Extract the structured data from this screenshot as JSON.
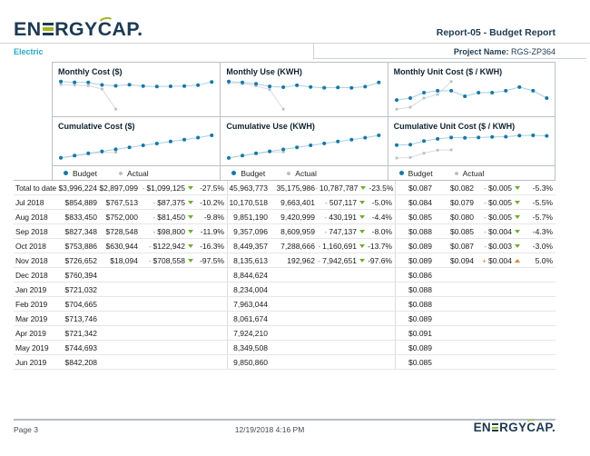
{
  "header": {
    "logo": {
      "part1": "EN",
      "part2": "RGY",
      "part3": "C",
      "part4": "AP."
    },
    "report_title": "Report-05 - Budget Report",
    "commodity": "Electric",
    "project_label": "Project Name:",
    "project_name": "RGS-ZP364"
  },
  "legend": {
    "budget": "Budget",
    "actual": "Actual"
  },
  "colors": {
    "navy": "#1d3a52",
    "logo_green": "#a4b41e",
    "commodity_teal": "#2aa8cb",
    "budget_dot": "#1878a5",
    "budget_line": "#a6d0e2",
    "actual_dot": "#b9c0c4",
    "actual_line": "#d9dde0",
    "variance_down_green": "#70ad2e",
    "variance_up_orange": "#e0813d"
  },
  "chart_data": [
    {
      "id": "monthly-cost",
      "type": "line",
      "title": "Monthly Cost ($)",
      "legend_position": "bottom",
      "grid": false,
      "x": [
        "Jul 2018",
        "Aug 2018",
        "Sep 2018",
        "Oct 2018",
        "Nov 2018",
        "Dec 2018",
        "Jan 2019",
        "Feb 2019",
        "Mar 2019",
        "Apr 2019",
        "May 2019",
        "Jun 2019"
      ],
      "series": [
        {
          "name": "Budget",
          "values": [
            854889,
            833450,
            827348,
            753886,
            726652,
            760394,
            721032,
            704665,
            713746,
            721342,
            744693,
            842208
          ]
        },
        {
          "name": "Actual",
          "values": [
            767513,
            752000,
            728548,
            630944,
            18094
          ]
        }
      ]
    },
    {
      "id": "monthly-use",
      "type": "line",
      "title": "Monthly Use (KWH)",
      "legend_position": "bottom",
      "grid": false,
      "x": [
        "Jul 2018",
        "Aug 2018",
        "Sep 2018",
        "Oct 2018",
        "Nov 2018",
        "Dec 2018",
        "Jan 2019",
        "Feb 2019",
        "Mar 2019",
        "Apr 2019",
        "May 2019",
        "Jun 2019"
      ],
      "series": [
        {
          "name": "Budget",
          "values": [
            10170518,
            9851190,
            9357096,
            8449357,
            8135613,
            8844624,
            8234004,
            7963044,
            8061674,
            7924210,
            8349508,
            9850860
          ]
        },
        {
          "name": "Actual",
          "values": [
            9663401,
            9420999,
            8609959,
            7288666,
            192962
          ]
        }
      ]
    },
    {
      "id": "monthly-unit-cost",
      "type": "line",
      "title": "Monthly Unit Cost ($ / KWH)",
      "legend_position": "bottom",
      "grid": false,
      "x": [
        "Jul 2018",
        "Aug 2018",
        "Sep 2018",
        "Oct 2018",
        "Nov 2018",
        "Dec 2018",
        "Jan 2019",
        "Feb 2019",
        "Mar 2019",
        "Apr 2019",
        "May 2019",
        "Jun 2019"
      ],
      "series": [
        {
          "name": "Budget",
          "values": [
            0.084,
            0.085,
            0.088,
            0.089,
            0.089,
            0.086,
            0.088,
            0.088,
            0.089,
            0.091,
            0.089,
            0.085
          ]
        },
        {
          "name": "Actual",
          "values": [
            0.079,
            0.08,
            0.085,
            0.087,
            0.094
          ]
        }
      ]
    },
    {
      "id": "cumulative-cost",
      "type": "line",
      "title": "Cumulative Cost ($)",
      "legend_position": "bottom",
      "grid": false,
      "x": [
        "Jul 2018",
        "Aug 2018",
        "Sep 2018",
        "Oct 2018",
        "Nov 2018",
        "Dec 2018",
        "Jan 2019",
        "Feb 2019",
        "Mar 2019",
        "Apr 2019",
        "May 2019",
        "Jun 2019"
      ],
      "series": [
        {
          "name": "Budget",
          "values": [
            854889,
            1688339,
            2515687,
            3269573,
            3996225,
            4756619,
            5477651,
            6182316,
            6896062,
            7617404,
            8362097,
            9204305
          ]
        },
        {
          "name": "Actual",
          "values": [
            767513,
            1519513,
            2248061,
            2879005,
            2897099
          ]
        }
      ]
    },
    {
      "id": "cumulative-use",
      "type": "line",
      "title": "Cumulative Use (KWH)",
      "legend_position": "bottom",
      "grid": false,
      "x": [
        "Jul 2018",
        "Aug 2018",
        "Sep 2018",
        "Oct 2018",
        "Nov 2018",
        "Dec 2018",
        "Jan 2019",
        "Feb 2019",
        "Mar 2019",
        "Apr 2019",
        "May 2019",
        "Jun 2019"
      ],
      "series": [
        {
          "name": "Budget",
          "values": [
            10170518,
            20021708,
            29378804,
            37828161,
            45963774,
            54808398,
            63042402,
            71005446,
            79067120,
            86991330,
            95340838,
            105191698
          ]
        },
        {
          "name": "Actual",
          "values": [
            9663401,
            19084400,
            27694359,
            34983025,
            35175987
          ]
        }
      ]
    },
    {
      "id": "cumulative-unit-cost",
      "type": "line",
      "title": "Cumulative Unit Cost ($ / KWH)",
      "legend_position": "bottom",
      "grid": false,
      "x": [
        "Jul 2018",
        "Aug 2018",
        "Sep 2018",
        "Oct 2018",
        "Nov 2018",
        "Dec 2018",
        "Jan 2019",
        "Feb 2019",
        "Mar 2019",
        "Apr 2019",
        "May 2019",
        "Jun 2019"
      ],
      "series": [
        {
          "name": "Budget",
          "values": [
            0.0841,
            0.0843,
            0.0856,
            0.0864,
            0.0869,
            0.0868,
            0.0869,
            0.0871,
            0.0872,
            0.0876,
            0.0877,
            0.0875
          ]
        },
        {
          "name": "Actual",
          "values": [
            0.0794,
            0.0796,
            0.0812,
            0.0823,
            0.0824
          ]
        }
      ]
    }
  ],
  "table": {
    "rows": [
      {
        "period": "Total to date",
        "cost": {
          "budget": "$3,996,224",
          "actual": "$2,897,099",
          "var": "$1,099,125",
          "dir": "down",
          "pct": "-27.5%"
        },
        "use": {
          "budget": "45,963,773",
          "actual": "35,175,986",
          "var": "10,787,787",
          "dir": "down",
          "pct": "-23.5%"
        },
        "unit": {
          "budget": "$0.087",
          "actual": "$0.082",
          "var": "$0.005",
          "dir": "down",
          "pct": "-5.3%"
        }
      },
      {
        "period": "Jul 2018",
        "cost": {
          "budget": "$854,889",
          "actual": "$767,513",
          "var": "$87,375",
          "dir": "down",
          "pct": "-10.2%"
        },
        "use": {
          "budget": "10,170,518",
          "actual": "9,663,401",
          "var": "507,117",
          "dir": "down",
          "pct": "-5.0%"
        },
        "unit": {
          "budget": "$0.084",
          "actual": "$0.079",
          "var": "$0.005",
          "dir": "down",
          "pct": "-5.5%"
        }
      },
      {
        "period": "Aug 2018",
        "cost": {
          "budget": "$833,450",
          "actual": "$752,000",
          "var": "$81,450",
          "dir": "down",
          "pct": "-9.8%"
        },
        "use": {
          "budget": "9,851,190",
          "actual": "9,420,999",
          "var": "430,191",
          "dir": "down",
          "pct": "-4.4%"
        },
        "unit": {
          "budget": "$0.085",
          "actual": "$0.080",
          "var": "$0.005",
          "dir": "down",
          "pct": "-5.7%"
        }
      },
      {
        "period": "Sep 2018",
        "cost": {
          "budget": "$827,348",
          "actual": "$728,548",
          "var": "$98,800",
          "dir": "down",
          "pct": "-11.9%"
        },
        "use": {
          "budget": "9,357,096",
          "actual": "8,609,959",
          "var": "747,137",
          "dir": "down",
          "pct": "-8.0%"
        },
        "unit": {
          "budget": "$0.088",
          "actual": "$0.085",
          "var": "$0.004",
          "dir": "down",
          "pct": "-4.3%"
        }
      },
      {
        "period": "Oct 2018",
        "cost": {
          "budget": "$753,886",
          "actual": "$630,944",
          "var": "$122,942",
          "dir": "down",
          "pct": "-16.3%"
        },
        "use": {
          "budget": "8,449,357",
          "actual": "7,288,666",
          "var": "1,160,691",
          "dir": "down",
          "pct": "-13.7%"
        },
        "unit": {
          "budget": "$0.089",
          "actual": "$0.087",
          "var": "$0.003",
          "dir": "down",
          "pct": "-3.0%"
        }
      },
      {
        "period": "Nov 2018",
        "cost": {
          "budget": "$726,652",
          "actual": "$18,094",
          "var": "$708,558",
          "dir": "down",
          "pct": "-97.5%"
        },
        "use": {
          "budget": "8,135,613",
          "actual": "192,962",
          "var": "7,942,651",
          "dir": "down",
          "pct": "-97.6%"
        },
        "unit": {
          "budget": "$0.089",
          "actual": "$0.094",
          "var": "$0.004",
          "dir": "up",
          "pct": "5.0%"
        }
      },
      {
        "period": "Dec 2018",
        "cost": {
          "budget": "$760,394"
        },
        "use": {
          "budget": "8,844,624"
        },
        "unit": {
          "budget": "$0.086"
        }
      },
      {
        "period": "Jan 2019",
        "cost": {
          "budget": "$721,032"
        },
        "use": {
          "budget": "8,234,004"
        },
        "unit": {
          "budget": "$0.088"
        }
      },
      {
        "period": "Feb 2019",
        "cost": {
          "budget": "$704,665"
        },
        "use": {
          "budget": "7,963,044"
        },
        "unit": {
          "budget": "$0.088"
        }
      },
      {
        "period": "Mar 2019",
        "cost": {
          "budget": "$713,746"
        },
        "use": {
          "budget": "8,061,674"
        },
        "unit": {
          "budget": "$0.089"
        }
      },
      {
        "period": "Apr 2019",
        "cost": {
          "budget": "$721,342"
        },
        "use": {
          "budget": "7,924,210"
        },
        "unit": {
          "budget": "$0.091"
        }
      },
      {
        "period": "May 2019",
        "cost": {
          "budget": "$744,693"
        },
        "use": {
          "budget": "8,349,508"
        },
        "unit": {
          "budget": "$0.089"
        }
      },
      {
        "period": "Jun 2019",
        "cost": {
          "budget": "$842,208"
        },
        "use": {
          "budget": "9,850,860"
        },
        "unit": {
          "budget": "$0.085"
        }
      }
    ]
  },
  "footer": {
    "page": "Page 3",
    "timestamp": "12/19/2018 4:16 PM"
  }
}
